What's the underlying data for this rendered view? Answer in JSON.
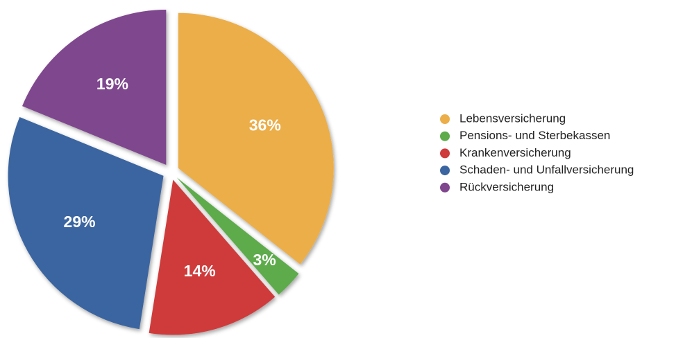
{
  "chart_data": {
    "type": "pie",
    "categories": [
      "Lebensversicherung",
      "Pensions- und Sterbekassen",
      "Krankenversicherung",
      "Schaden- und Unfallversicherung",
      "Rückversicherung"
    ],
    "values": [
      36,
      3,
      14,
      29,
      19
    ],
    "value_labels": [
      "36%",
      "3%",
      "14%",
      "29%",
      "19%"
    ],
    "colors": [
      "#ecae48",
      "#5dab4b",
      "#cf3a3b",
      "#3b65a0",
      "#7f468e"
    ],
    "legend": "right"
  }
}
